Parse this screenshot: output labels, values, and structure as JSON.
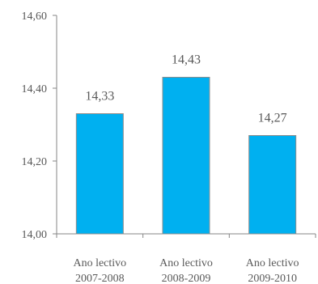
{
  "chart_data": {
    "type": "bar",
    "categories": [
      [
        "Ano lectivo",
        "2007-2008"
      ],
      [
        "Ano lectivo",
        "2008-2009"
      ],
      [
        "Ano lectivo",
        "2009-2010"
      ]
    ],
    "values": [
      14.33,
      14.43,
      14.27
    ],
    "value_labels": [
      "14,33",
      "14,43",
      "14,27"
    ],
    "y_ticks": [
      14.0,
      14.2,
      14.4,
      14.6
    ],
    "y_tick_labels": [
      "14,00",
      "14,20",
      "14,40",
      "14,60"
    ],
    "ylim": [
      14.0,
      14.6
    ],
    "title": "",
    "xlabel": "",
    "ylabel": "",
    "grid": false,
    "legend": "none",
    "colors": {
      "bar_fill": "#00B0F0",
      "bar_stroke": "#8C8C8C",
      "axis": "#868686",
      "text": "#595959"
    }
  }
}
